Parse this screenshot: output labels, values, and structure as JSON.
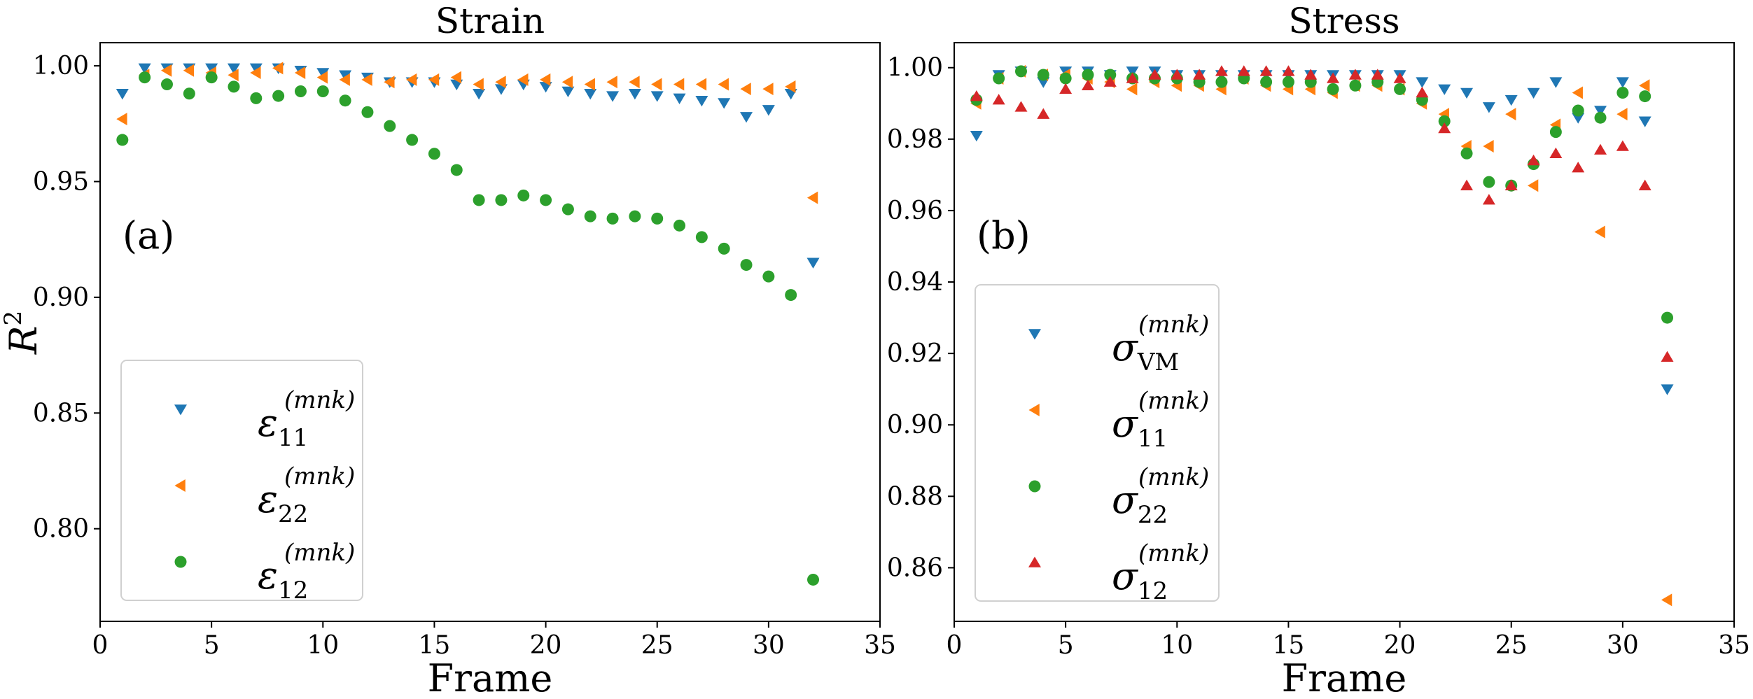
{
  "chart_data": [
    {
      "type": "scatter",
      "title": "Strain",
      "panel_label": "(a)",
      "xlabel": "Frame",
      "ylabel": "R",
      "ylabel_sup": "2",
      "xlim": [
        0,
        35
      ],
      "ylim": [
        0.76,
        1.01
      ],
      "xticks": [
        0,
        5,
        10,
        15,
        20,
        25,
        30,
        35
      ],
      "yticks": [
        0.8,
        0.85,
        0.9,
        0.95,
        1.0
      ],
      "ytick_labels": [
        "0.80",
        "0.85",
        "0.90",
        "0.95",
        "1.00"
      ],
      "legend_location": "lower-left",
      "series": [
        {
          "name": "ε",
          "name_sub": "11",
          "name_sup": "(mnk)",
          "marker": "triangle-down",
          "color": "#1f77b4",
          "x": [
            1,
            2,
            3,
            4,
            5,
            6,
            7,
            8,
            9,
            10,
            11,
            12,
            13,
            14,
            15,
            16,
            17,
            18,
            19,
            20,
            21,
            22,
            23,
            24,
            25,
            26,
            27,
            28,
            29,
            30,
            31,
            32
          ],
          "y": [
            0.988,
            0.999,
            0.999,
            0.999,
            0.999,
            0.999,
            0.999,
            0.999,
            0.998,
            0.997,
            0.996,
            0.995,
            0.993,
            0.993,
            0.993,
            0.992,
            0.988,
            0.99,
            0.992,
            0.991,
            0.989,
            0.988,
            0.987,
            0.988,
            0.987,
            0.986,
            0.985,
            0.984,
            0.978,
            0.981,
            0.988,
            0.915
          ]
        },
        {
          "name": "ε",
          "name_sub": "22",
          "name_sup": "(mnk)",
          "marker": "triangle-left",
          "color": "#ff7f0e",
          "x": [
            1,
            2,
            3,
            4,
            5,
            6,
            7,
            8,
            9,
            10,
            11,
            12,
            13,
            14,
            15,
            16,
            17,
            18,
            19,
            20,
            21,
            22,
            23,
            24,
            25,
            26,
            27,
            28,
            29,
            30,
            31,
            32
          ],
          "y": [
            0.977,
            0.996,
            0.998,
            0.998,
            0.997,
            0.996,
            0.997,
            0.999,
            0.997,
            0.995,
            0.994,
            0.994,
            0.993,
            0.994,
            0.994,
            0.995,
            0.992,
            0.993,
            0.994,
            0.994,
            0.993,
            0.992,
            0.993,
            0.993,
            0.992,
            0.992,
            0.992,
            0.992,
            0.99,
            0.99,
            0.991,
            0.943
          ]
        },
        {
          "name": "ε",
          "name_sub": "12",
          "name_sup": "(mnk)",
          "marker": "circle",
          "color": "#2ca02c",
          "x": [
            1,
            2,
            3,
            4,
            5,
            6,
            7,
            8,
            9,
            10,
            11,
            12,
            13,
            14,
            15,
            16,
            17,
            18,
            19,
            20,
            21,
            22,
            23,
            24,
            25,
            26,
            27,
            28,
            29,
            30,
            31,
            32
          ],
          "y": [
            0.968,
            0.995,
            0.992,
            0.988,
            0.995,
            0.991,
            0.986,
            0.987,
            0.989,
            0.989,
            0.985,
            0.98,
            0.974,
            0.968,
            0.962,
            0.955,
            0.942,
            0.942,
            0.944,
            0.942,
            0.938,
            0.935,
            0.934,
            0.935,
            0.934,
            0.931,
            0.926,
            0.921,
            0.914,
            0.909,
            0.901,
            0.778
          ]
        }
      ]
    },
    {
      "type": "scatter",
      "title": "Stress",
      "panel_label": "(b)",
      "xlabel": "Frame",
      "ylabel": "",
      "xlim": [
        0,
        35
      ],
      "ylim": [
        0.845,
        1.007
      ],
      "xticks": [
        0,
        5,
        10,
        15,
        20,
        25,
        30,
        35
      ],
      "yticks": [
        0.86,
        0.88,
        0.9,
        0.92,
        0.94,
        0.96,
        0.98,
        1.0
      ],
      "ytick_labels": [
        "0.86",
        "0.88",
        "0.90",
        "0.92",
        "0.94",
        "0.96",
        "0.98",
        "1.00"
      ],
      "legend_location": "lower-left",
      "series": [
        {
          "name": "σ",
          "name_sub": "VM",
          "name_sup": "(mnk)",
          "marker": "triangle-down",
          "color": "#1f77b4",
          "x": [
            1,
            2,
            3,
            4,
            5,
            6,
            7,
            8,
            9,
            10,
            11,
            12,
            13,
            14,
            15,
            16,
            17,
            18,
            19,
            20,
            21,
            22,
            23,
            24,
            25,
            26,
            27,
            28,
            29,
            30,
            31,
            32
          ],
          "y": [
            0.981,
            0.998,
            0.999,
            0.996,
            0.999,
            0.999,
            0.998,
            0.999,
            0.999,
            0.998,
            0.998,
            0.998,
            0.998,
            0.998,
            0.998,
            0.998,
            0.998,
            0.998,
            0.998,
            0.998,
            0.996,
            0.994,
            0.993,
            0.989,
            0.991,
            0.993,
            0.996,
            0.986,
            0.988,
            0.996,
            0.985,
            0.91
          ]
        },
        {
          "name": "σ",
          "name_sub": "11",
          "name_sup": "(mnk)",
          "marker": "triangle-left",
          "color": "#ff7f0e",
          "x": [
            1,
            2,
            3,
            4,
            5,
            6,
            7,
            8,
            9,
            10,
            11,
            12,
            13,
            14,
            15,
            16,
            17,
            18,
            19,
            20,
            21,
            22,
            23,
            24,
            25,
            26,
            27,
            28,
            29,
            30,
            31,
            32
          ],
          "y": [
            0.99,
            0.997,
            0.999,
            0.998,
            0.998,
            0.997,
            0.996,
            0.994,
            0.996,
            0.995,
            0.995,
            0.994,
            0.997,
            0.995,
            0.994,
            0.994,
            0.993,
            0.995,
            0.995,
            0.994,
            0.99,
            0.987,
            0.978,
            0.978,
            0.987,
            0.967,
            0.984,
            0.993,
            0.954,
            0.987,
            0.995,
            0.851
          ]
        },
        {
          "name": "σ",
          "name_sub": "22",
          "name_sup": "(mnk)",
          "marker": "circle",
          "color": "#2ca02c",
          "x": [
            1,
            2,
            3,
            4,
            5,
            6,
            7,
            8,
            9,
            10,
            11,
            12,
            13,
            14,
            15,
            16,
            17,
            18,
            19,
            20,
            21,
            22,
            23,
            24,
            25,
            26,
            27,
            28,
            29,
            30,
            31,
            32
          ],
          "y": [
            0.991,
            0.997,
            0.999,
            0.998,
            0.997,
            0.998,
            0.998,
            0.997,
            0.997,
            0.997,
            0.996,
            0.996,
            0.997,
            0.996,
            0.996,
            0.996,
            0.994,
            0.995,
            0.996,
            0.994,
            0.991,
            0.985,
            0.976,
            0.968,
            0.967,
            0.973,
            0.982,
            0.988,
            0.986,
            0.993,
            0.992,
            0.93
          ]
        },
        {
          "name": "σ",
          "name_sub": "12",
          "name_sup": "(mnk)",
          "marker": "triangle-up",
          "color": "#d62728",
          "x": [
            1,
            2,
            3,
            4,
            5,
            6,
            7,
            8,
            9,
            10,
            11,
            12,
            13,
            14,
            15,
            16,
            17,
            18,
            19,
            20,
            21,
            22,
            23,
            24,
            25,
            26,
            27,
            28,
            29,
            30,
            31,
            32
          ],
          "y": [
            0.992,
            0.991,
            0.989,
            0.987,
            0.994,
            0.995,
            0.996,
            0.997,
            0.998,
            0.998,
            0.998,
            0.999,
            0.999,
            0.999,
            0.999,
            0.998,
            0.997,
            0.998,
            0.998,
            0.997,
            0.993,
            0.983,
            0.967,
            0.963,
            0.967,
            0.974,
            0.976,
            0.972,
            0.977,
            0.978,
            0.967,
            0.919
          ]
        }
      ]
    }
  ]
}
